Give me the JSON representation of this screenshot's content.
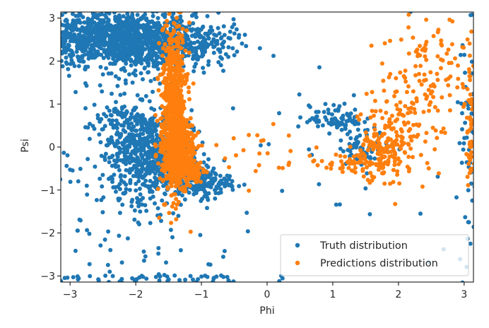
{
  "chart_data": {
    "type": "scatter",
    "title": "",
    "xlabel": "Phi",
    "ylabel": "Psi",
    "xlim": [
      -3.14159,
      3.14159
    ],
    "ylim": [
      -3.14159,
      3.14159
    ],
    "x_ticks": [
      -3,
      -2,
      -1,
      0,
      1,
      2,
      3
    ],
    "y_ticks": [
      -3,
      -2,
      -1,
      0,
      1,
      2,
      3
    ],
    "grid": false,
    "legend_position": "lower-right",
    "series": [
      {
        "name": "Truth distribution",
        "color": "#1f77b4",
        "clusters": [
          {
            "cx": -2.2,
            "cy": 2.5,
            "sx": 0.55,
            "sy": 0.3,
            "n": 900
          },
          {
            "cx": -2.9,
            "cy": 2.6,
            "sx": 0.25,
            "sy": 0.3,
            "n": 150
          },
          {
            "cx": -1.9,
            "cy": 2.3,
            "sx": 0.3,
            "sy": 0.5,
            "n": 200
          },
          {
            "cx": -1.0,
            "cy": 2.4,
            "sx": 0.3,
            "sy": 0.25,
            "n": 160
          },
          {
            "cx": -1.75,
            "cy": -0.15,
            "sx": 0.3,
            "sy": 0.5,
            "n": 550
          },
          {
            "cx": -1.05,
            "cy": -0.8,
            "sx": 0.25,
            "sy": 0.18,
            "n": 200
          },
          {
            "cx": -2.2,
            "cy": 0.5,
            "sx": 0.25,
            "sy": 0.35,
            "n": 110
          },
          {
            "cx": -2.3,
            "cy": -0.6,
            "sx": 0.4,
            "sy": 0.6,
            "n": 60
          },
          {
            "cx": 1.05,
            "cy": 0.65,
            "sx": 0.2,
            "sy": 0.15,
            "n": 80
          },
          {
            "cx": 1.5,
            "cy": 0.0,
            "sx": 0.2,
            "sy": 0.2,
            "n": 70
          },
          {
            "cx": -2.0,
            "cy": -1.9,
            "sx": 0.8,
            "sy": 0.9,
            "n": 70
          },
          {
            "cx": -2.0,
            "cy": -3.05,
            "sx": 0.9,
            "sy": 0.06,
            "n": 60
          },
          {
            "cx": 0.5,
            "cy": 0.0,
            "sx": 2.2,
            "sy": 1.8,
            "n": 55
          },
          {
            "cx": 3.05,
            "cy": 0.0,
            "sx": 0.08,
            "sy": 1.6,
            "n": 55
          }
        ]
      },
      {
        "name": "Predictions distribution",
        "color": "#ff7f0e",
        "clusters": [
          {
            "cx": -1.42,
            "cy": 0.9,
            "sx": 0.1,
            "sy": 0.95,
            "n": 700
          },
          {
            "cx": -1.35,
            "cy": -0.15,
            "sx": 0.12,
            "sy": 0.35,
            "n": 450
          },
          {
            "cx": -1.2,
            "cy": -0.55,
            "sx": 0.12,
            "sy": 0.12,
            "n": 130
          },
          {
            "cx": 1.7,
            "cy": -0.15,
            "sx": 0.22,
            "sy": 0.3,
            "n": 150
          },
          {
            "cx": 2.05,
            "cy": 0.5,
            "sx": 0.3,
            "sy": 0.55,
            "n": 120
          },
          {
            "cx": 2.55,
            "cy": 1.9,
            "sx": 0.4,
            "sy": 0.6,
            "n": 90
          },
          {
            "cx": 1.2,
            "cy": -0.35,
            "sx": 0.4,
            "sy": 0.12,
            "n": 45
          },
          {
            "cx": -0.3,
            "cy": 0.0,
            "sx": 0.3,
            "sy": 0.3,
            "n": 18
          },
          {
            "cx": 3.1,
            "cy": 0.5,
            "sx": 0.03,
            "sy": 0.8,
            "n": 60
          }
        ]
      }
    ]
  }
}
